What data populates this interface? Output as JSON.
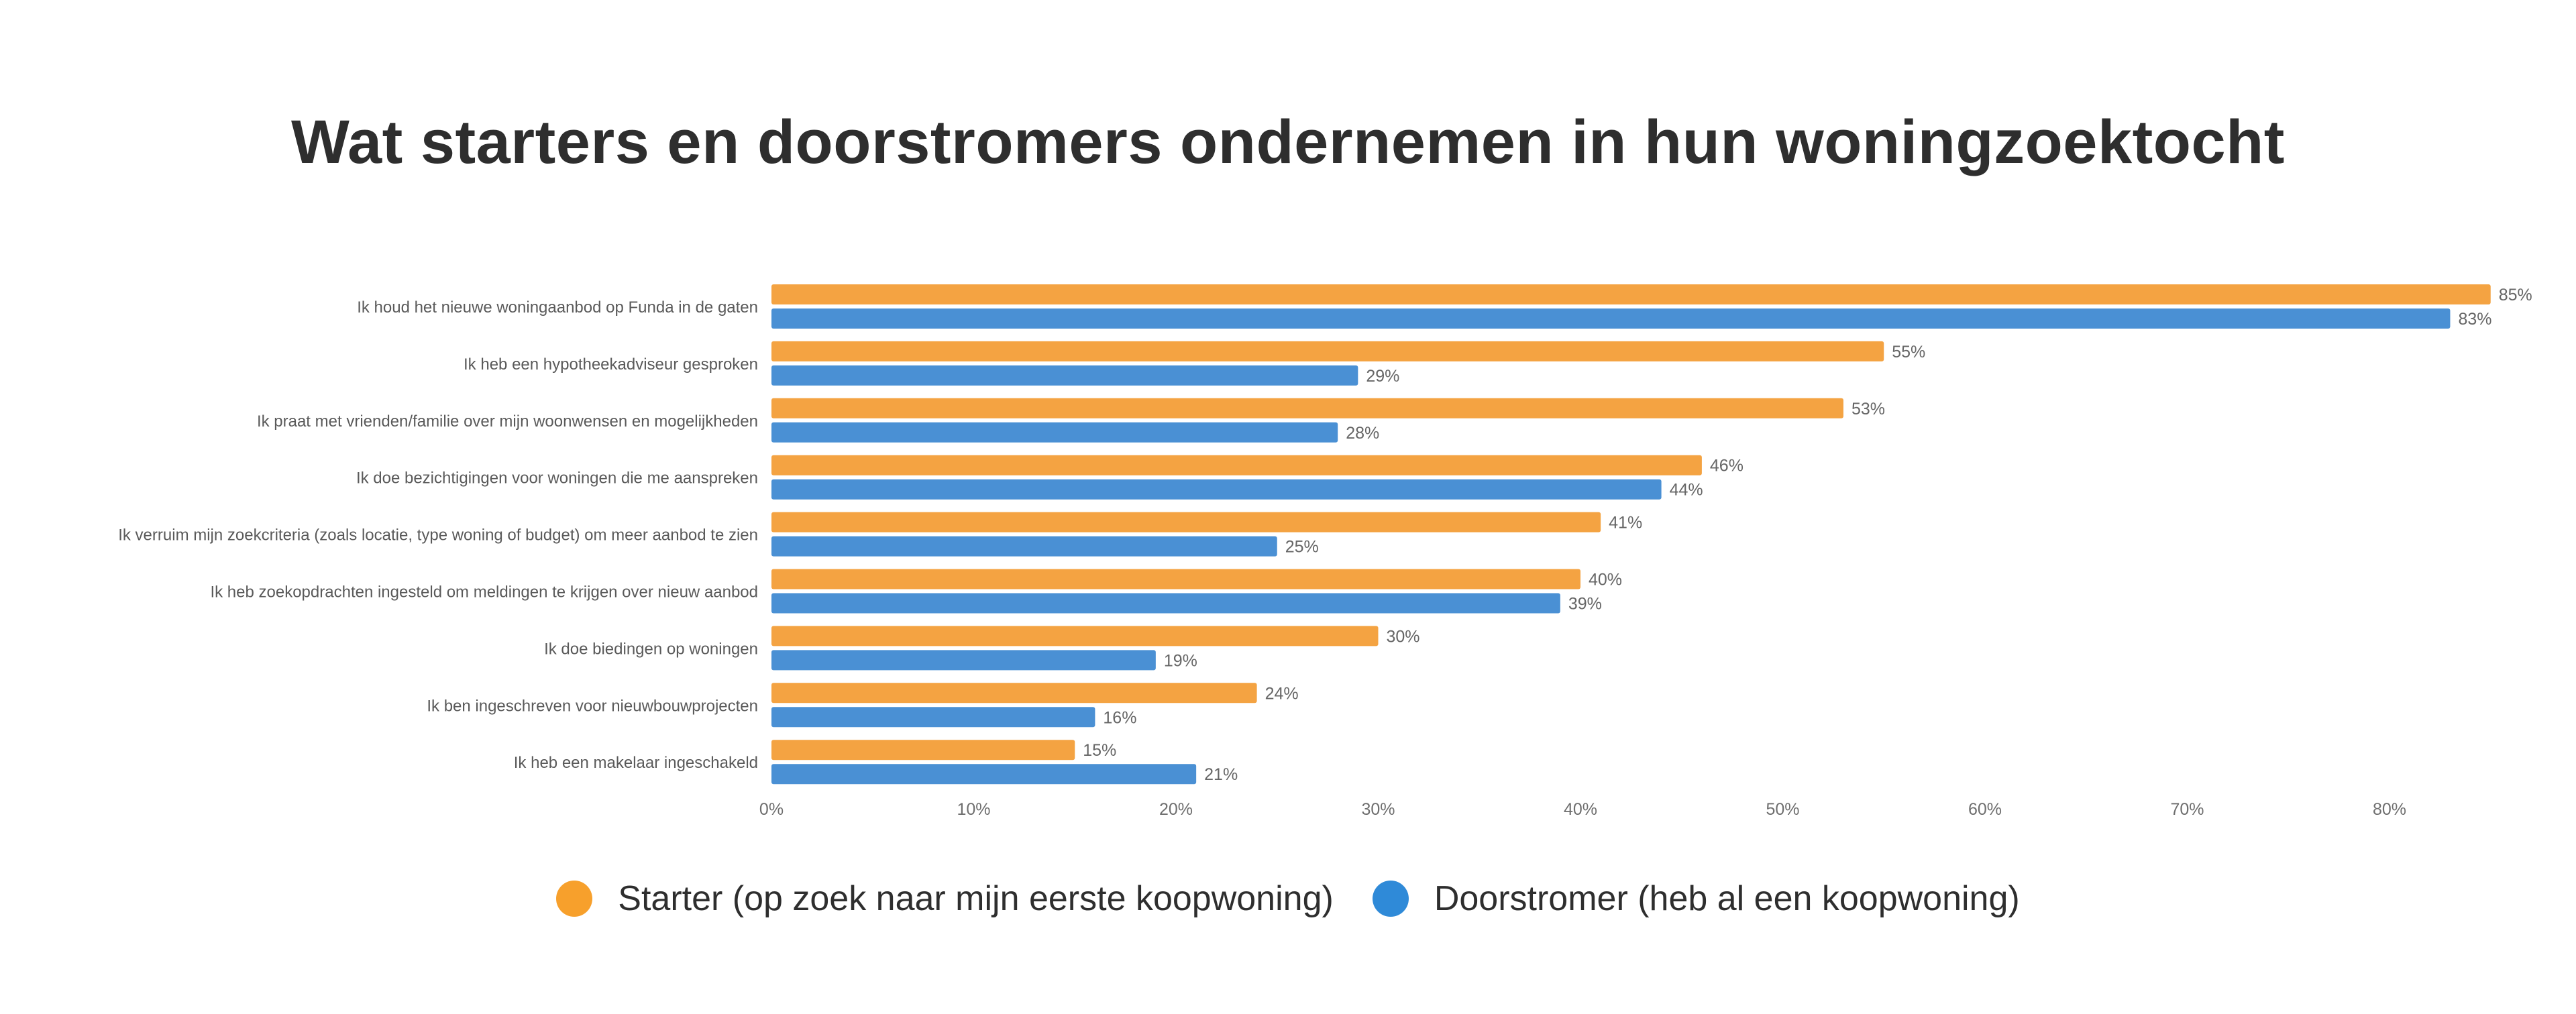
{
  "colors": {
    "starter": "#F4A342",
    "doorstromer": "#4A90D4",
    "legend_starter": "#F7A02C",
    "legend_doorstromer": "#2F8AD8"
  },
  "legend": {
    "starter": "Starter (op zoek naar mijn eerste koopwoning)",
    "doorstromer": "Doorstromer (heb al een koopwoning)"
  },
  "chart_data": {
    "type": "bar",
    "orientation": "horizontal",
    "title": "Wat starters en doorstromers ondernemen in hun woningzoektocht",
    "xlabel": "",
    "ylabel": "",
    "xlim": [
      0,
      88
    ],
    "grid": false,
    "legend_position": "bottom",
    "categories": [
      "Ik houd het nieuwe woningaanbod op Funda in de gaten",
      "Ik heb een hypotheekadviseur gesproken",
      "Ik praat met vrienden/familie over mijn woonwensen en mogelijkheden",
      "Ik doe bezichtigingen voor woningen die me aanspreken",
      "Ik verruim mijn zoekcriteria (zoals locatie, type woning of budget) om meer aanbod te zien",
      "Ik heb zoekopdrachten ingesteld om meldingen te krijgen over nieuw aanbod",
      "Ik doe biedingen op woningen",
      "Ik ben ingeschreven voor nieuwbouwprojecten",
      "Ik heb een makelaar ingeschakeld"
    ],
    "series": [
      {
        "name": "Starter (op zoek naar mijn eerste koopwoning)",
        "key": "starter",
        "values": [
          85,
          55,
          53,
          46,
          41,
          40,
          30,
          24,
          15
        ],
        "labels": [
          "85%",
          "55%",
          "53%",
          "46%",
          "41%",
          "40%",
          "30%",
          "24%",
          "15%"
        ]
      },
      {
        "name": "Doorstromer (heb al een koopwoning)",
        "key": "doorstromer",
        "values": [
          83,
          29,
          28,
          44,
          25,
          39,
          19,
          16,
          21
        ],
        "labels": [
          "83%",
          "29%",
          "28%",
          "44%",
          "25%",
          "39%",
          "19%",
          "16%",
          "21%"
        ]
      }
    ],
    "x_ticks": [
      0,
      10,
      20,
      30,
      40,
      50,
      60,
      70,
      80
    ],
    "x_tick_labels": [
      "0%",
      "10%",
      "20%",
      "30%",
      "40%",
      "50%",
      "60%",
      "70%",
      "80%"
    ]
  }
}
